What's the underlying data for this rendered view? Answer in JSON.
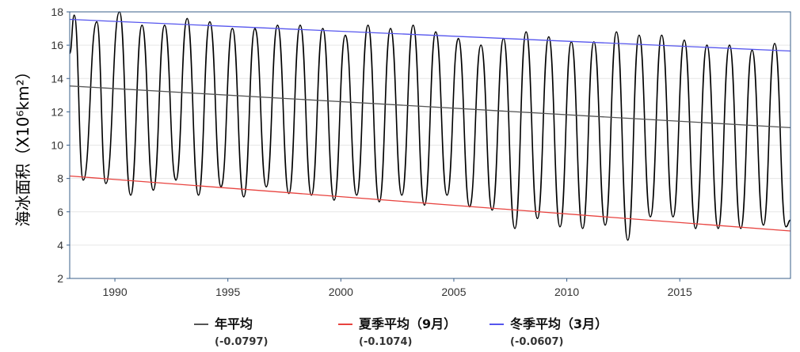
{
  "chart_data": {
    "type": "line",
    "title": "",
    "xlabel": "",
    "ylabel": "海冰面积（X10⁶km²）",
    "xlim": [
      1988,
      2019.9
    ],
    "ylim": [
      2,
      18
    ],
    "x_ticks": [
      1990,
      1995,
      2000,
      2005,
      2010,
      2015
    ],
    "y_ticks": [
      2,
      4,
      6,
      8,
      10,
      12,
      14,
      16,
      18
    ],
    "grid": true,
    "legend_position": "bottom",
    "colors": {
      "series": "#000000",
      "annual": "#555555",
      "summer": "#e8433f",
      "winter": "#5555ee",
      "axis": "#3a5f8a",
      "grid": "#e6e6e6"
    },
    "series": [
      {
        "key": "daily",
        "x": [
          1988.0,
          1988.2,
          1988.6,
          1989.2,
          1989.6,
          1990.2,
          1990.7,
          1991.2,
          1991.7,
          1992.2,
          1992.7,
          1993.2,
          1993.7,
          1994.2,
          1994.7,
          1995.2,
          1995.7,
          1996.2,
          1996.7,
          1997.2,
          1997.7,
          1998.2,
          1998.7,
          1999.2,
          1999.7,
          2000.2,
          2000.7,
          2001.2,
          2001.7,
          2002.2,
          2002.7,
          2003.2,
          2003.7,
          2004.2,
          2004.7,
          2005.2,
          2005.7,
          2006.2,
          2006.7,
          2007.2,
          2007.7,
          2008.2,
          2008.7,
          2009.2,
          2009.7,
          2010.2,
          2010.7,
          2011.2,
          2011.7,
          2012.2,
          2012.7,
          2013.2,
          2013.7,
          2014.2,
          2014.7,
          2015.2,
          2015.7,
          2016.2,
          2016.7,
          2017.2,
          2017.7,
          2018.2,
          2018.7,
          2019.2,
          2019.7,
          2019.9
        ],
        "values": [
          15.5,
          17.8,
          7.9,
          17.4,
          7.7,
          18.0,
          7.0,
          17.2,
          7.3,
          17.2,
          7.9,
          17.6,
          7.0,
          17.4,
          7.5,
          17.0,
          6.9,
          17.0,
          7.5,
          17.2,
          7.1,
          17.2,
          7.0,
          17.0,
          6.7,
          16.6,
          7.0,
          17.2,
          6.6,
          17.0,
          7.0,
          17.2,
          6.4,
          16.8,
          7.0,
          16.4,
          6.3,
          16.0,
          6.1,
          16.4,
          5.0,
          16.8,
          5.6,
          16.5,
          5.1,
          16.2,
          5.0,
          16.2,
          5.2,
          16.8,
          4.3,
          16.6,
          5.7,
          16.6,
          5.7,
          16.3,
          5.0,
          16.0,
          5.0,
          16.0,
          5.0,
          15.7,
          5.2,
          16.1,
          5.1,
          5.5
        ]
      },
      {
        "key": "annual",
        "name": "年平均",
        "coef": "(-0.0797)",
        "x": [
          1988.0,
          2019.9
        ],
        "values": [
          13.55,
          11.05
        ]
      },
      {
        "key": "summer",
        "name": "夏季平均（9月）",
        "coef": "(-0.1074)",
        "x": [
          1988.0,
          2019.9
        ],
        "values": [
          8.15,
          4.85
        ]
      },
      {
        "key": "winter",
        "name": "冬季平均（3月）",
        "coef": "(-0.0607)",
        "x": [
          1988.0,
          2019.9
        ],
        "values": [
          17.55,
          15.65
        ]
      }
    ]
  }
}
